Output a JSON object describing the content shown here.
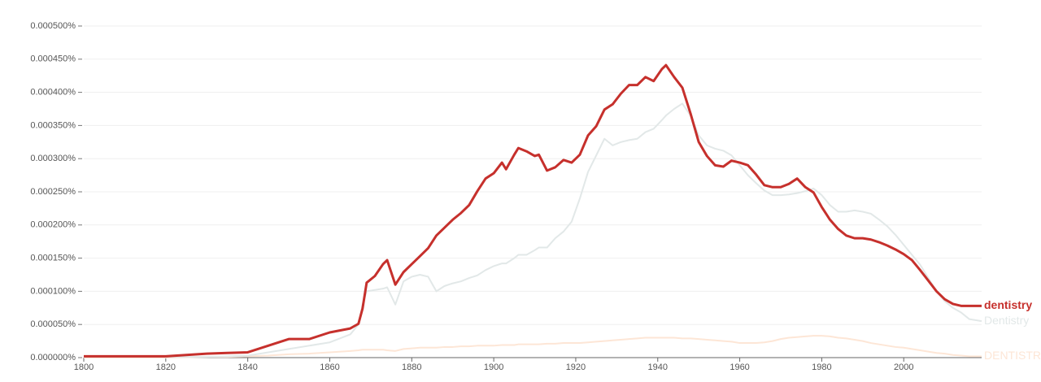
{
  "chart_data": {
    "type": "line",
    "x": [
      1800,
      1820,
      1830,
      1835,
      1840,
      1845,
      1850,
      1855,
      1860,
      1865,
      1867,
      1868,
      1869,
      1871,
      1873,
      1874,
      1876,
      1878,
      1880,
      1882,
      1884,
      1886,
      1888,
      1890,
      1892,
      1894,
      1896,
      1898,
      1900,
      1902,
      1903,
      1905,
      1906,
      1908,
      1910,
      1911,
      1913,
      1915,
      1917,
      1919,
      1921,
      1923,
      1925,
      1927,
      1929,
      1931,
      1933,
      1935,
      1937,
      1939,
      1941,
      1942,
      1944,
      1946,
      1948,
      1950,
      1952,
      1954,
      1956,
      1958,
      1960,
      1962,
      1964,
      1966,
      1968,
      1970,
      1972,
      1974,
      1976,
      1978,
      1980,
      1982,
      1984,
      1986,
      1988,
      1990,
      1992,
      1994,
      1996,
      1998,
      2000,
      2002,
      2004,
      2006,
      2008,
      2010,
      2012,
      2014,
      2016,
      2019
    ],
    "series": [
      {
        "name": "DENTISTRY",
        "color": "#fde6d6",
        "values": [
          0,
          0,
          1e-06,
          1e-06,
          2e-06,
          3e-06,
          5e-06,
          6e-06,
          8e-06,
          1e-05,
          1.1e-05,
          1.2e-05,
          1.2e-05,
          1.2e-05,
          1.2e-05,
          1.1e-05,
          1e-05,
          1.3e-05,
          1.4e-05,
          1.5e-05,
          1.5e-05,
          1.5e-05,
          1.6e-05,
          1.6e-05,
          1.7e-05,
          1.7e-05,
          1.8e-05,
          1.8e-05,
          1.8e-05,
          1.9e-05,
          1.9e-05,
          1.9e-05,
          2e-05,
          2e-05,
          2e-05,
          2e-05,
          2.1e-05,
          2.1e-05,
          2.2e-05,
          2.2e-05,
          2.2e-05,
          2.3e-05,
          2.4e-05,
          2.5e-05,
          2.6e-05,
          2.7e-05,
          2.8e-05,
          2.9e-05,
          3e-05,
          3e-05,
          3e-05,
          3e-05,
          3e-05,
          2.9e-05,
          2.9e-05,
          2.8e-05,
          2.7e-05,
          2.6e-05,
          2.5e-05,
          2.4e-05,
          2.2e-05,
          2.2e-05,
          2.2e-05,
          2.3e-05,
          2.5e-05,
          2.8e-05,
          3e-05,
          3.1e-05,
          3.2e-05,
          3.3e-05,
          3.3e-05,
          3.2e-05,
          3e-05,
          2.9e-05,
          2.7e-05,
          2.5e-05,
          2.2e-05,
          2e-05,
          1.8e-05,
          1.6e-05,
          1.5e-05,
          1.3e-05,
          1.1e-05,
          9e-06,
          7e-06,
          6e-06,
          4e-06,
          3e-06,
          2e-06,
          2e-06
        ]
      },
      {
        "name": "Dentistry",
        "color": "#e2e8e8",
        "values": [
          1e-06,
          1e-06,
          1e-06,
          2e-06,
          3e-06,
          8e-06,
          1.3e-05,
          1.8e-05,
          2.3e-05,
          3.5e-05,
          5e-05,
          8e-05,
          0.0001,
          0.000102,
          0.000104,
          0.000106,
          8e-05,
          0.000115,
          0.000122,
          0.000125,
          0.000122,
          0.0001,
          0.000108,
          0.000112,
          0.000115,
          0.00012,
          0.000124,
          0.000132,
          0.000138,
          0.000142,
          0.000142,
          0.00015,
          0.000155,
          0.000155,
          0.000162,
          0.000166,
          0.000166,
          0.00018,
          0.00019,
          0.000205,
          0.00024,
          0.00028,
          0.000305,
          0.00033,
          0.00032,
          0.000325,
          0.000328,
          0.00033,
          0.00034,
          0.000345,
          0.000358,
          0.000365,
          0.000375,
          0.000383,
          0.000365,
          0.000335,
          0.00032,
          0.000315,
          0.000312,
          0.000305,
          0.00029,
          0.000275,
          0.000263,
          0.000252,
          0.000245,
          0.000245,
          0.000246,
          0.000248,
          0.000251,
          0.000255,
          0.000245,
          0.00023,
          0.00022,
          0.00022,
          0.000222,
          0.00022,
          0.000217,
          0.000208,
          0.000198,
          0.000185,
          0.00017,
          0.000155,
          0.00014,
          0.00012,
          0.0001,
          8.5e-05,
          7.5e-05,
          6.8e-05,
          5.8e-05,
          5.5e-05
        ]
      },
      {
        "name": "dentistry",
        "color": "#c6302c",
        "values": [
          2e-06,
          2e-06,
          6e-06,
          7e-06,
          8e-06,
          1.8e-05,
          2.8e-05,
          2.8e-05,
          3.8e-05,
          4.4e-05,
          5.1e-05,
          7.4e-05,
          0.000113,
          0.000123,
          0.000141,
          0.000147,
          0.00011,
          0.000129,
          0.000141,
          0.000153,
          0.000165,
          0.000184,
          0.000196,
          0.000208,
          0.000218,
          0.00023,
          0.000251,
          0.00027,
          0.000278,
          0.000294,
          0.000284,
          0.000306,
          0.000316,
          0.000311,
          0.000304,
          0.000306,
          0.000282,
          0.000287,
          0.000298,
          0.000294,
          0.000306,
          0.000335,
          0.000349,
          0.000374,
          0.000382,
          0.000398,
          0.000411,
          0.000411,
          0.000423,
          0.000417,
          0.000435,
          0.000441,
          0.000423,
          0.000407,
          0.000368,
          0.000325,
          0.000304,
          0.00029,
          0.000288,
          0.000297,
          0.000294,
          0.00029,
          0.000276,
          0.00026,
          0.000257,
          0.000257,
          0.000262,
          0.00027,
          0.000257,
          0.000249,
          0.000227,
          0.000208,
          0.000194,
          0.000184,
          0.00018,
          0.00018,
          0.000178,
          0.000174,
          0.000169,
          0.000163,
          0.000156,
          0.000147,
          0.000132,
          0.000116,
          0.0001,
          8.8e-05,
          8.1e-05,
          7.8e-05,
          7.8e-05,
          7.8e-05
        ]
      }
    ],
    "xlim": [
      1800,
      2019
    ],
    "xticks": [
      1800,
      1820,
      1840,
      1860,
      1880,
      1900,
      1920,
      1940,
      1960,
      1980,
      2000
    ],
    "ylim": [
      0,
      0.0005
    ],
    "yticks": [
      {
        "value": 0,
        "label": "0.000000%"
      },
      {
        "value": 5e-05,
        "label": "0.000050%"
      },
      {
        "value": 0.0001,
        "label": "0.000100%"
      },
      {
        "value": 0.00015,
        "label": "0.000150%"
      },
      {
        "value": 0.0002,
        "label": "0.000200%"
      },
      {
        "value": 0.00025,
        "label": "0.000250%"
      },
      {
        "value": 0.0003,
        "label": "0.000300%"
      },
      {
        "value": 0.00035,
        "label": "0.000350%"
      },
      {
        "value": 0.0004,
        "label": "0.000400%"
      },
      {
        "value": 0.00045,
        "label": "0.000450%"
      },
      {
        "value": 0.0005,
        "label": "0.000500%"
      }
    ],
    "grid": true
  }
}
